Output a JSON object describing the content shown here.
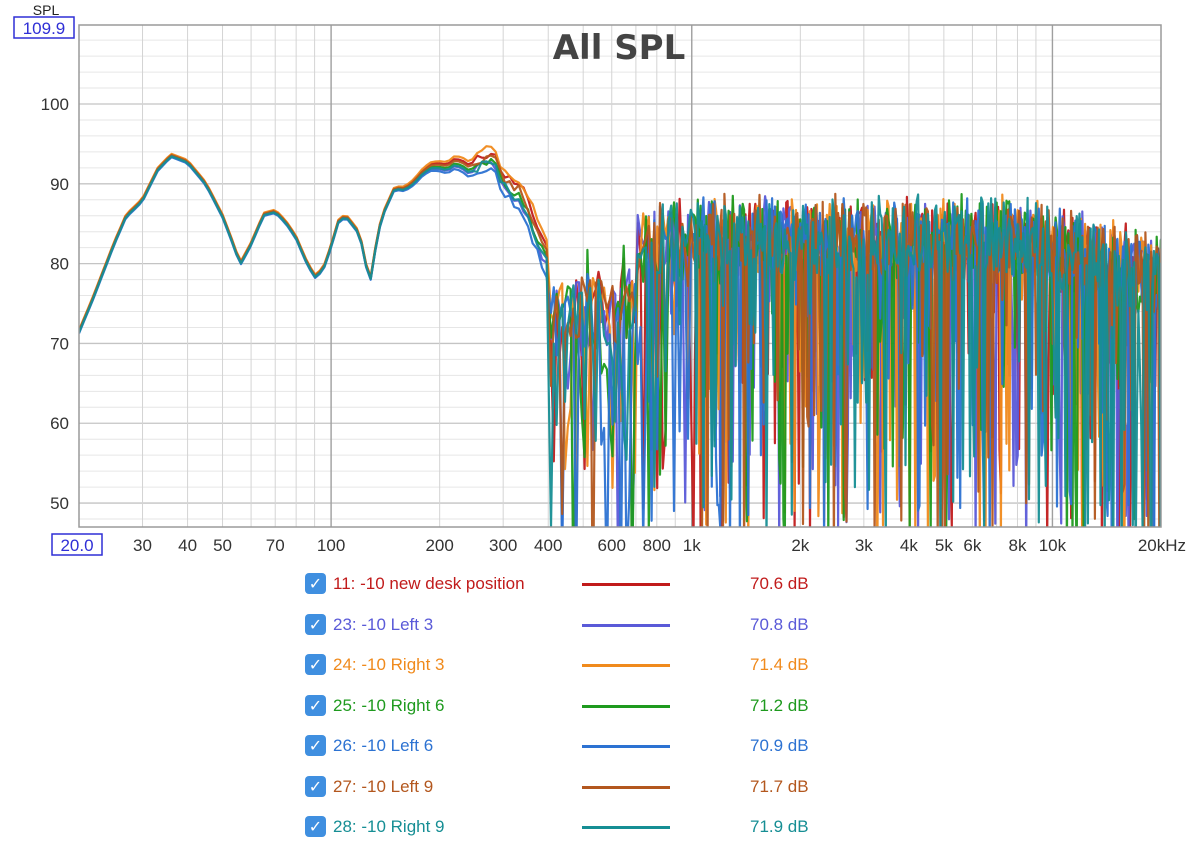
{
  "chart_data": {
    "type": "line",
    "title": "All SPL",
    "ylabel": "SPL",
    "xunit": "kHz",
    "xscale": "log",
    "xlim": [
      20,
      20000
    ],
    "ylim": [
      47,
      109.9
    ],
    "xlim_box_label": "20.0",
    "ylim_box_label": "109.9",
    "grid": true,
    "x_ticks": [
      {
        "value": 30,
        "label": "30"
      },
      {
        "value": 40,
        "label": "40"
      },
      {
        "value": 50,
        "label": "50"
      },
      {
        "value": 70,
        "label": "70"
      },
      {
        "value": 100,
        "label": "100"
      },
      {
        "value": 200,
        "label": "200"
      },
      {
        "value": 300,
        "label": "300"
      },
      {
        "value": 400,
        "label": "400"
      },
      {
        "value": 600,
        "label": "600"
      },
      {
        "value": 800,
        "label": "800"
      },
      {
        "value": 1000,
        "label": "1k"
      },
      {
        "value": 2000,
        "label": "2k"
      },
      {
        "value": 3000,
        "label": "3k"
      },
      {
        "value": 4000,
        "label": "4k"
      },
      {
        "value": 5000,
        "label": "5k"
      },
      {
        "value": 6000,
        "label": "6k"
      },
      {
        "value": 8000,
        "label": "8k"
      },
      {
        "value": 10000,
        "label": "10k"
      },
      {
        "value": 20000,
        "label": "20kHz"
      }
    ],
    "y_ticks": [
      {
        "value": 100,
        "label": "100"
      },
      {
        "value": 90,
        "label": "90"
      },
      {
        "value": 80,
        "label": "80"
      },
      {
        "value": 70,
        "label": "70"
      },
      {
        "value": 60,
        "label": "60"
      },
      {
        "value": 50,
        "label": "50"
      }
    ],
    "common_low": {
      "x": [
        20,
        22,
        25,
        27,
        30,
        33,
        36,
        40,
        45,
        50,
        53,
        56,
        60,
        65,
        70,
        75,
        80,
        85,
        90,
        95,
        100,
        105,
        110,
        120,
        128,
        135,
        140,
        150,
        160,
        170,
        180,
        190,
        200,
        210,
        220,
        230,
        240,
        250,
        260,
        270,
        280,
        290,
        300,
        320,
        340,
        360,
        380,
        400
      ],
      "y": [
        71.5,
        76,
        82.5,
        86,
        88,
        91.8,
        93.6,
        92.8,
        90,
        86,
        83,
        80,
        82.5,
        86.2,
        86.6,
        85.2,
        83.3,
        80.5,
        78.4,
        79.3,
        82.2,
        85.5,
        86,
        83.8,
        77.5,
        84,
        86.5,
        89.5,
        89.4,
        90.3,
        91.6,
        92.3,
        92.3,
        92.1,
        92.8,
        92.6,
        92,
        92.3,
        93,
        93.2,
        93.6,
        92.2,
        90.5,
        89.6,
        88.6,
        85.5,
        83,
        81
      ]
    },
    "series": [
      {
        "name": "11: -10 new desk position",
        "value": "70.6 dB",
        "color": "#c11b1b",
        "spl": 70.6,
        "offset": 0.3,
        "seed": 11
      },
      {
        "name": "23: -10 Left 3",
        "value": "70.8 dB",
        "color": "#5a5ad8",
        "spl": 70.8,
        "offset": -0.5,
        "seed": 23
      },
      {
        "name": "24: -10 Right 3",
        "value": "71.4 dB",
        "color": "#f08a1c",
        "spl": 71.4,
        "offset": 0.6,
        "seed": 24
      },
      {
        "name": "25: -10 Right 6",
        "value": "71.2 dB",
        "color": "#1e9a1e",
        "spl": 71.2,
        "offset": -0.2,
        "seed": 25
      },
      {
        "name": "26: -10 Left 6",
        "value": "70.9 dB",
        "color": "#2c72d2",
        "spl": 70.9,
        "offset": -0.8,
        "seed": 26
      },
      {
        "name": "27: -10 Left 9",
        "value": "71.7 dB",
        "color": "#b3571e",
        "spl": 71.7,
        "offset": 0.1,
        "seed": 27
      },
      {
        "name": "28: -10 Right 9",
        "value": "71.9 dB",
        "color": "#168e94",
        "spl": 71.9,
        "offset": -0.4,
        "seed": 28
      }
    ]
  },
  "legend": {
    "check_glyph": "✓"
  }
}
